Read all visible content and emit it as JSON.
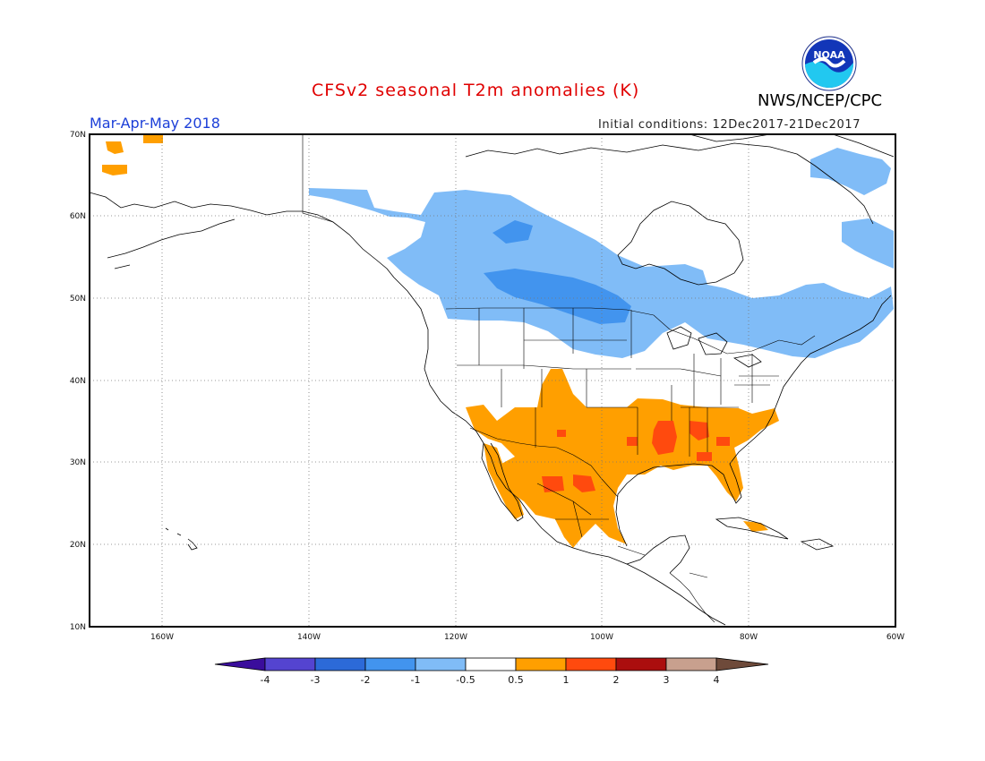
{
  "title": "CFSv2 seasonal T2m anomalies (K)",
  "agency": "NWS/NCEP/CPC",
  "logo_text": "NOAA",
  "season": "Mar-Apr-May 2018",
  "initial_conditions": "Initial conditions: 12Dec2017-21Dec2017",
  "axes": {
    "lat_labels": [
      "70N",
      "60N",
      "50N",
      "40N",
      "30N",
      "20N",
      "10N"
    ],
    "lon_labels": [
      "160W",
      "140W",
      "120W",
      "100W",
      "80W",
      "60W"
    ],
    "lat_range": [
      10,
      70
    ],
    "lon_range": [
      -171,
      -60
    ],
    "grid": "dotted"
  },
  "colorbar": {
    "labels": [
      "-4",
      "-3",
      "-2",
      "-1",
      "-0.5",
      "0.5",
      "1",
      "2",
      "3",
      "4"
    ],
    "colors": [
      "#3a0d9c",
      "#5444d0",
      "#2c6ad8",
      "#4294ee",
      "#80bcf7",
      "#ffffff",
      "#ff9f00",
      "#ff4a0e",
      "#ab0e0e",
      "#c8a08e",
      "#6e4a3a"
    ]
  },
  "chart_data": {
    "type": "heatmap",
    "variable": "T2m anomaly (K)",
    "regions": [
      {
        "region": "Western & central Canada",
        "category": "-1 to -0.5",
        "color": "#80bcf7"
      },
      {
        "region": "Prairies / northern Plains",
        "category": "-2 to -1",
        "color": "#4294ee"
      },
      {
        "region": "Eastern Canada / Great Lakes",
        "category": "-1 to -0.5",
        "color": "#80bcf7"
      },
      {
        "region": "Southwest US & northern Mexico",
        "category": "0.5 to 1",
        "color": "#ff9f00"
      },
      {
        "region": "Southern Plains & Southeast US",
        "category": "0.5 to 1",
        "color": "#ff9f00"
      },
      {
        "region": "Lower Mississippi Valley",
        "category": "1 to 2",
        "color": "#ff4a0e"
      },
      {
        "region": "Chihuahua (Mexico)",
        "category": "1 to 2",
        "color": "#ff4a0e"
      },
      {
        "region": "Western Alaska",
        "category": "0.5 to 1",
        "color": "#ff9f00"
      }
    ]
  }
}
